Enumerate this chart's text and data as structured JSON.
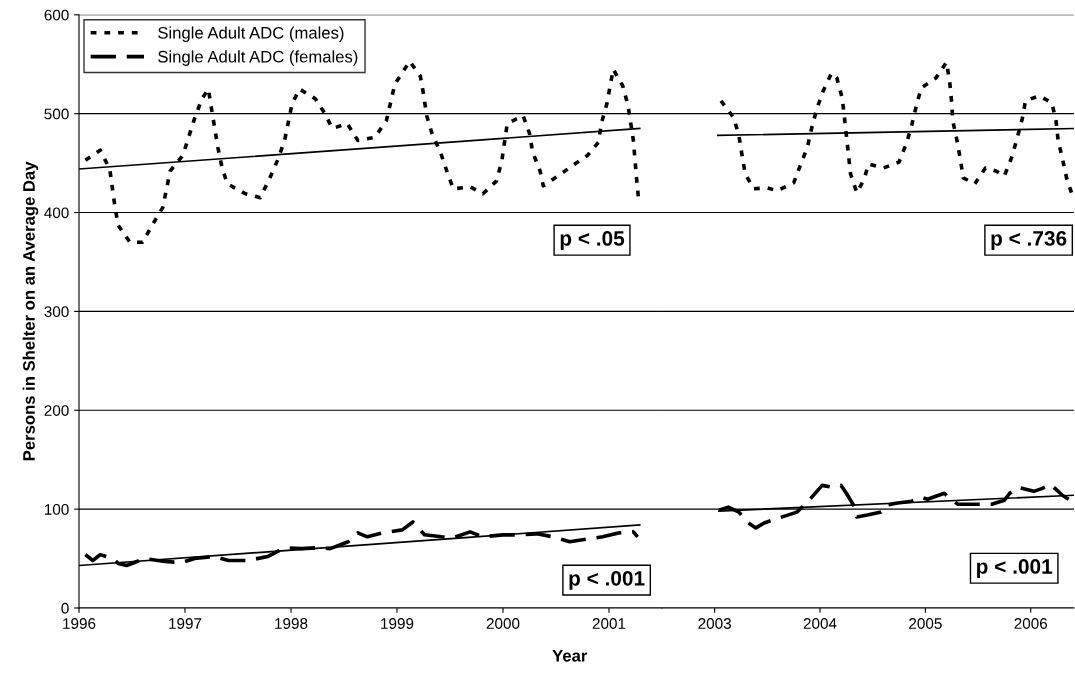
{
  "chart_data": [
    {
      "type": "line",
      "xlabel": "Year",
      "ylabel": "Persons in Shelter on an Average Day",
      "xlim": [
        1996,
        2001.5
      ],
      "xticks": [
        1996,
        1997,
        1998,
        1999,
        2000,
        2001
      ],
      "ylim": [
        0,
        600
      ],
      "yticks": [
        0,
        100,
        200,
        300,
        400,
        500,
        600
      ],
      "grid": "y",
      "legend": "top left",
      "annotations": [
        "p < .05",
        "p < .001"
      ],
      "series": [
        {
          "name": "Single Adult ADC (males)",
          "color": "#000000",
          "line_style": "dotted",
          "x": [
            1996.06,
            1996.2,
            1996.29,
            1996.34,
            1996.37,
            1996.48,
            1996.6,
            1996.7,
            1996.79,
            1996.86,
            1996.98,
            1997.09,
            1997.16,
            1997.22,
            1997.25,
            1997.31,
            1997.35,
            1997.4,
            1997.57,
            1997.71,
            1997.8,
            1997.87,
            1997.94,
            1998.01,
            1998.08,
            1998.23,
            1998.32,
            1998.39,
            1998.53,
            1998.63,
            1998.79,
            1998.9,
            1998.98,
            1999.12,
            1999.22,
            1999.25,
            1999.28,
            1999.33,
            1999.41,
            1999.47,
            1999.53,
            1999.69,
            1999.81,
            1999.94,
            1999.99,
            2000.04,
            2000.19,
            2000.25,
            2000.28,
            2000.35,
            2000.38,
            2000.52,
            2000.65,
            2000.8,
            2000.9,
            2000.93,
            2000.98,
            2001.04,
            2001.13,
            2001.18,
            2001.23,
            2001.26,
            2001.28
          ],
          "values": [
            453,
            463,
            444,
            405,
            387,
            370,
            370,
            389,
            405,
            442,
            458,
            495,
            515,
            525,
            505,
            466,
            445,
            429,
            419,
            415,
            435,
            452,
            473,
            510,
            525,
            515,
            500,
            485,
            490,
            473,
            476,
            493,
            530,
            553,
            538,
            520,
            498,
            480,
            461,
            442,
            424,
            426,
            419,
            432,
            453,
            490,
            498,
            480,
            461,
            442,
            427,
            437,
            447,
            458,
            471,
            491,
            510,
            545,
            528,
            508,
            473,
            435,
            412
          ]
        },
        {
          "name": "Single Adult ADC (females)",
          "color": "#000000",
          "line_style": "dashed",
          "x": [
            1996.06,
            1996.13,
            1996.2,
            1996.32,
            1996.37,
            1996.45,
            1996.62,
            1996.81,
            1996.97,
            1997.09,
            1997.28,
            1997.41,
            1997.59,
            1997.78,
            1997.94,
            1998.1,
            1998.25,
            1998.37,
            1998.54,
            1998.63,
            1998.72,
            1998.86,
            1999.05,
            1999.15,
            1999.26,
            1999.42,
            1999.53,
            1999.69,
            1999.81,
            2000.0,
            2000.16,
            2000.32,
            2000.47,
            2000.63,
            2000.75,
            2000.94,
            2001.1,
            2001.23,
            2001.27
          ],
          "values": [
            54,
            48,
            54,
            50,
            45,
            43,
            50,
            47,
            46,
            50,
            52,
            48,
            48,
            52,
            61,
            60,
            61,
            60,
            67,
            76,
            72,
            76,
            79,
            87,
            74,
            72,
            71,
            77,
            72,
            74,
            74,
            75,
            72,
            67,
            69,
            72,
            76,
            77,
            72
          ]
        },
        {
          "color": "#000000",
          "line_style": "solid",
          "x": [
            1996,
            2001.29
          ],
          "values": [
            444,
            485
          ]
        },
        {
          "color": "#000000",
          "line_style": "solid",
          "x": [
            1996,
            2001.29
          ],
          "values": [
            43,
            84
          ]
        }
      ]
    },
    {
      "type": "line",
      "xlim": [
        2002.5,
        2006.41
      ],
      "xticks": [
        2003,
        2004,
        2005,
        2006
      ],
      "ylim": [
        0,
        600
      ],
      "yticks": [
        0,
        100,
        200,
        300,
        400,
        500,
        600
      ],
      "grid": "y",
      "tick_labels": "x",
      "annotations": [
        "p < .736",
        "p < .001"
      ],
      "series": [
        {
          "color": "#000000",
          "line_style": "dotted",
          "x": [
            2003.06,
            2003.18,
            2003.23,
            2003.26,
            2003.29,
            2003.37,
            2003.5,
            2003.59,
            2003.75,
            2003.81,
            2003.88,
            2003.92,
            2003.97,
            2004.03,
            2004.11,
            2004.16,
            2004.21,
            2004.23,
            2004.25,
            2004.29,
            2004.35,
            2004.42,
            2004.46,
            2004.6,
            2004.75,
            2004.82,
            2004.87,
            2004.91,
            2004.96,
            2005.1,
            2005.2,
            2005.23,
            2005.25,
            2005.26,
            2005.3,
            2005.33,
            2005.36,
            2005.47,
            2005.57,
            2005.67,
            2005.75,
            2005.82,
            2005.87,
            2005.92,
            2005.95,
            2006.08,
            2006.2,
            2006.24,
            2006.26,
            2006.3,
            2006.34,
            2006.39
          ],
          "values": [
            513,
            496,
            478,
            458,
            439,
            424,
            425,
            422,
            430,
            447,
            466,
            485,
            505,
            523,
            541,
            536,
            516,
            498,
            478,
            439,
            420,
            434,
            449,
            445,
            451,
            470,
            488,
            506,
            526,
            536,
            552,
            533,
            511,
            493,
            473,
            455,
            435,
            429,
            445,
            442,
            437,
            456,
            475,
            495,
            513,
            518,
            511,
            493,
            473,
            455,
            435,
            419
          ]
        },
        {
          "color": "#000000",
          "line_style": "dashed",
          "x": [
            2003.04,
            2003.13,
            2003.23,
            2003.32,
            2003.39,
            2003.47,
            2003.61,
            2003.78,
            2003.88,
            2004.02,
            2004.12,
            2004.2,
            2004.25,
            2004.33,
            2004.35,
            2004.45,
            2004.58,
            2004.63,
            2004.72,
            2004.87,
            2004.96,
            2005.02,
            2005.18,
            2005.23,
            2005.31,
            2005.45,
            2005.63,
            2005.75,
            2005.8,
            2005.88,
            2006.03,
            2006.11,
            2006.19,
            2006.3,
            2006.36
          ],
          "values": [
            99,
            102,
            97,
            86,
            81,
            86,
            91,
            97,
            107,
            124,
            122,
            124,
            116,
            102,
            92,
            94,
            97,
            104,
            106,
            108,
            112,
            110,
            116,
            111,
            105,
            105,
            105,
            109,
            116,
            122,
            118,
            121,
            125,
            114,
            110
          ]
        },
        {
          "color": "#000000",
          "line_style": "solid",
          "x": [
            2003.03,
            2006.41
          ],
          "values": [
            478,
            485
          ]
        },
        {
          "color": "#000000",
          "line_style": "solid",
          "x": [
            2003.04,
            2006.41
          ],
          "values": [
            98,
            114
          ]
        }
      ]
    }
  ]
}
